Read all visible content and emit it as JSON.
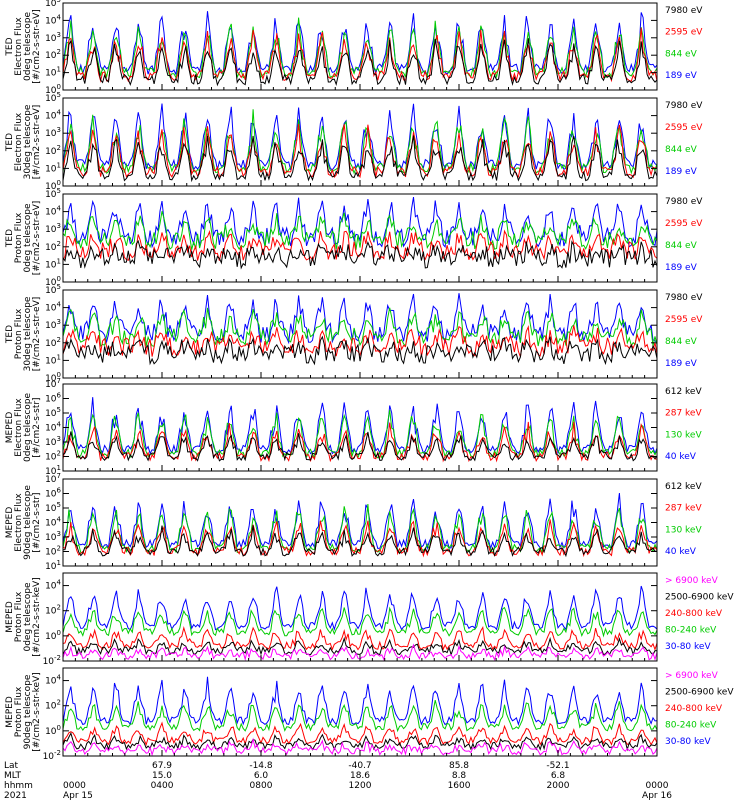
{
  "chart_data": [
    {
      "type": "line",
      "ylabel": [
        "TED",
        "Electron Flux",
        "0deg telescope",
        "[#/cm2-s-str-eV]"
      ],
      "scale": "log",
      "ylim": [
        1,
        100000
      ],
      "ytick_labels": [
        "10^0",
        "10^1",
        "10^2",
        "10^3",
        "10^4",
        "10^5"
      ],
      "legend": [
        {
          "label": "7980 eV",
          "color": "#000000"
        },
        {
          "label": "2595 eV",
          "color": "#ff0000"
        },
        {
          "label": "844 eV",
          "color": "#00cc00"
        },
        {
          "label": "189 eV",
          "color": "#0000ff"
        }
      ]
    },
    {
      "type": "line",
      "ylabel": [
        "TED",
        "Electron Flux",
        "30deg telescope",
        "[#/cm2-s-str-eV]"
      ],
      "scale": "log",
      "ylim": [
        1,
        100000
      ],
      "ytick_labels": [
        "10^0",
        "10^1",
        "10^2",
        "10^3",
        "10^4",
        "10^5"
      ],
      "legend": [
        {
          "label": "7980 eV",
          "color": "#000000"
        },
        {
          "label": "2595 eV",
          "color": "#ff0000"
        },
        {
          "label": "844 eV",
          "color": "#00cc00"
        },
        {
          "label": "189 eV",
          "color": "#0000ff"
        }
      ]
    },
    {
      "type": "line",
      "ylabel": [
        "TED",
        "Proton Flux",
        "0deg telescope",
        "[#/cm2-s-str-eV]"
      ],
      "scale": "log",
      "ylim": [
        1,
        100000
      ],
      "ytick_labels": [
        "10^0",
        "10^1",
        "10^2",
        "10^3",
        "10^4",
        "10^5"
      ],
      "legend": [
        {
          "label": "7980 eV",
          "color": "#000000"
        },
        {
          "label": "2595 eV",
          "color": "#ff0000"
        },
        {
          "label": "844 eV",
          "color": "#00cc00"
        },
        {
          "label": "189 eV",
          "color": "#0000ff"
        }
      ]
    },
    {
      "type": "line",
      "ylabel": [
        "TED",
        "Proton Flux",
        "30deg telescope",
        "[#/cm2-s-str-eV]"
      ],
      "scale": "log",
      "ylim": [
        1,
        100000
      ],
      "ytick_labels": [
        "10^0",
        "10^1",
        "10^2",
        "10^3",
        "10^4",
        "10^5"
      ],
      "legend": [
        {
          "label": "7980 eV",
          "color": "#000000"
        },
        {
          "label": "2595 eV",
          "color": "#ff0000"
        },
        {
          "label": "844 eV",
          "color": "#00cc00"
        },
        {
          "label": "189 eV",
          "color": "#0000ff"
        }
      ]
    },
    {
      "type": "line",
      "ylabel": [
        "MEPED",
        "Electron Flux",
        "0deg telescope",
        "[#/cm2-s-str]"
      ],
      "scale": "log",
      "ylim": [
        10,
        10000000
      ],
      "ytick_labels": [
        "10^1",
        "10^2",
        "10^3",
        "10^4",
        "10^5",
        "10^6",
        "10^7"
      ],
      "legend": [
        {
          "label": "612 keV",
          "color": "#000000"
        },
        {
          "label": "287 keV",
          "color": "#ff0000"
        },
        {
          "label": "130 keV",
          "color": "#00cc00"
        },
        {
          "label": "40 keV",
          "color": "#0000ff"
        }
      ]
    },
    {
      "type": "line",
      "ylabel": [
        "MEPED",
        "Electron Flux",
        "90deg telescope",
        "[#/cm2-s-str]"
      ],
      "scale": "log",
      "ylim": [
        10,
        10000000
      ],
      "ytick_labels": [
        "10^1",
        "10^2",
        "10^3",
        "10^4",
        "10^5",
        "10^6",
        "10^7"
      ],
      "legend": [
        {
          "label": "612 keV",
          "color": "#000000"
        },
        {
          "label": "287 keV",
          "color": "#ff0000"
        },
        {
          "label": "130 keV",
          "color": "#00cc00"
        },
        {
          "label": "40 keV",
          "color": "#0000ff"
        }
      ]
    },
    {
      "type": "line",
      "ylabel": [
        "MEPED",
        "Proton Flux",
        "0deg telescope",
        "[#/cm2-s-str-keV]"
      ],
      "scale": "log",
      "ylim": [
        0.01,
        100000
      ],
      "ytick_labels": [
        "10^-2",
        "10^0",
        "10^2",
        "10^4"
      ],
      "legend": [
        {
          "label": "> 6900 keV",
          "color": "#ff00ff"
        },
        {
          "label": "2500-6900 keV",
          "color": "#000000"
        },
        {
          "label": "240-800 keV",
          "color": "#ff0000"
        },
        {
          "label": "80-240 keV",
          "color": "#00cc00"
        },
        {
          "label": "30-80 keV",
          "color": "#0000ff"
        }
      ]
    },
    {
      "type": "line",
      "ylabel": [
        "MEPED",
        "Proton Flux",
        "90deg telescope",
        "[#/cm2-s-str-keV]"
      ],
      "scale": "log",
      "ylim": [
        0.01,
        100000
      ],
      "ytick_labels": [
        "10^-2",
        "10^0",
        "10^2",
        "10^4"
      ],
      "legend": [
        {
          "label": "> 6900 keV",
          "color": "#ff00ff"
        },
        {
          "label": "2500-6900 keV",
          "color": "#000000"
        },
        {
          "label": "240-800 keV",
          "color": "#ff0000"
        },
        {
          "label": "80-240 keV",
          "color": "#00cc00"
        },
        {
          "label": "30-80 keV",
          "color": "#0000ff"
        }
      ]
    }
  ],
  "x_axis": {
    "row_labels": [
      "Lat",
      "MLT",
      "hhmm",
      "2021"
    ],
    "ticks": [
      {
        "hhmm": "0000",
        "day": "Apr 15",
        "lat": "",
        "mlt": "",
        "frac": 0.0
      },
      {
        "hhmm": "0400",
        "day": "",
        "lat": "67.9",
        "mlt": "15.0",
        "frac": 0.1667
      },
      {
        "hhmm": "0800",
        "day": "",
        "lat": "-14.8",
        "mlt": "6.0",
        "frac": 0.3333
      },
      {
        "hhmm": "1200",
        "day": "",
        "lat": "-40.7",
        "mlt": "18.6",
        "frac": 0.5
      },
      {
        "hhmm": "1600",
        "day": "",
        "lat": "85.8",
        "mlt": "8.8",
        "frac": 0.6667
      },
      {
        "hhmm": "2000",
        "day": "",
        "lat": "-52.1",
        "mlt": "6.8",
        "frac": 0.8333
      },
      {
        "hhmm": "0000",
        "day": "Apr 16",
        "lat": "",
        "mlt": "",
        "frac": 1.0
      }
    ]
  }
}
